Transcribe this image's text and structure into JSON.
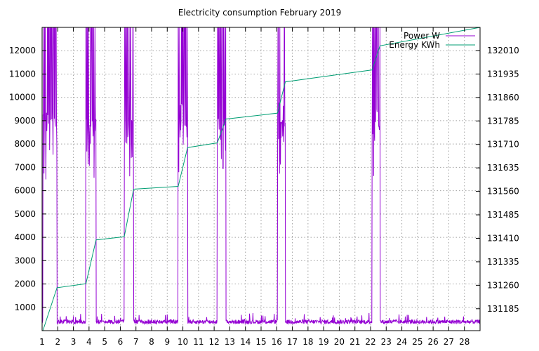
{
  "chart_data": {
    "type": "line",
    "title": "Electricity consumption February 2019",
    "xlabel": "",
    "ylabel": "",
    "y2label": "",
    "xlim": [
      1,
      29
    ],
    "ylim": [
      0,
      13000
    ],
    "y2lim": [
      131115,
      132084
    ],
    "x_ticks": [
      1,
      2,
      3,
      4,
      5,
      6,
      7,
      8,
      9,
      10,
      11,
      12,
      13,
      14,
      15,
      16,
      17,
      18,
      19,
      20,
      21,
      22,
      23,
      24,
      25,
      26,
      27,
      28
    ],
    "x_tick_labels": [
      "1",
      "2",
      "3",
      "4",
      "5",
      "6",
      "7",
      "8",
      "9",
      "10",
      "11",
      "12",
      "13",
      "14",
      "15",
      "16",
      "17",
      "18",
      "19",
      "20",
      "21",
      "22",
      "23",
      "24",
      "25",
      "26",
      "27",
      "28"
    ],
    "y_ticks": [
      1000,
      2000,
      3000,
      4000,
      5000,
      6000,
      7000,
      8000,
      9000,
      10000,
      11000,
      12000
    ],
    "y_tick_labels": [
      "1000",
      "2000",
      "3000",
      "4000",
      "5000",
      "6000",
      "7000",
      "8000",
      "9000",
      "10000",
      "11000",
      "12000"
    ],
    "y2_ticks": [
      131185,
      131260,
      131335,
      131410,
      131485,
      131560,
      131635,
      131710,
      131785,
      131860,
      131935,
      132010
    ],
    "y2_tick_labels": [
      "131185",
      "131260",
      "131335",
      "131410",
      "131485",
      "131560",
      "131635",
      "131710",
      "131785",
      "131860",
      "131935",
      "132010"
    ],
    "grid": true,
    "legend_position": "top-right",
    "series": [
      {
        "name": "Power W",
        "axis": "y1",
        "color": "#9400d3",
        "baseline": 380,
        "baseline_noise": 90,
        "bursts": [
          {
            "start": 1.05,
            "end": 1.95,
            "peak": 13000,
            "plateau": 8900
          },
          {
            "start": 3.8,
            "end": 4.45,
            "peak": 13000,
            "plateau": 8900
          },
          {
            "start": 6.25,
            "end": 6.85,
            "peak": 13000,
            "plateau": 8900
          },
          {
            "start": 9.7,
            "end": 10.3,
            "peak": 13000,
            "plateau": 8900
          },
          {
            "start": 12.2,
            "end": 12.75,
            "peak": 13000,
            "plateau": 8900
          },
          {
            "start": 16.05,
            "end": 16.55,
            "peak": 13000,
            "plateau": 8900
          },
          {
            "start": 22.1,
            "end": 22.6,
            "peak": 13000,
            "plateau": 8900
          }
        ]
      },
      {
        "name": "Energy KWh",
        "axis": "y2",
        "color": "#009e73",
        "x": [
          1.05,
          1.95,
          3.8,
          4.45,
          6.25,
          6.85,
          9.7,
          10.3,
          12.2,
          12.75,
          16.05,
          16.55,
          22.1,
          22.6,
          29
        ],
        "y": [
          131115,
          131252,
          131265,
          131405,
          131415,
          131567,
          131576,
          131700,
          131715,
          131791,
          131810,
          131910,
          131948,
          132025,
          132084
        ]
      }
    ]
  }
}
